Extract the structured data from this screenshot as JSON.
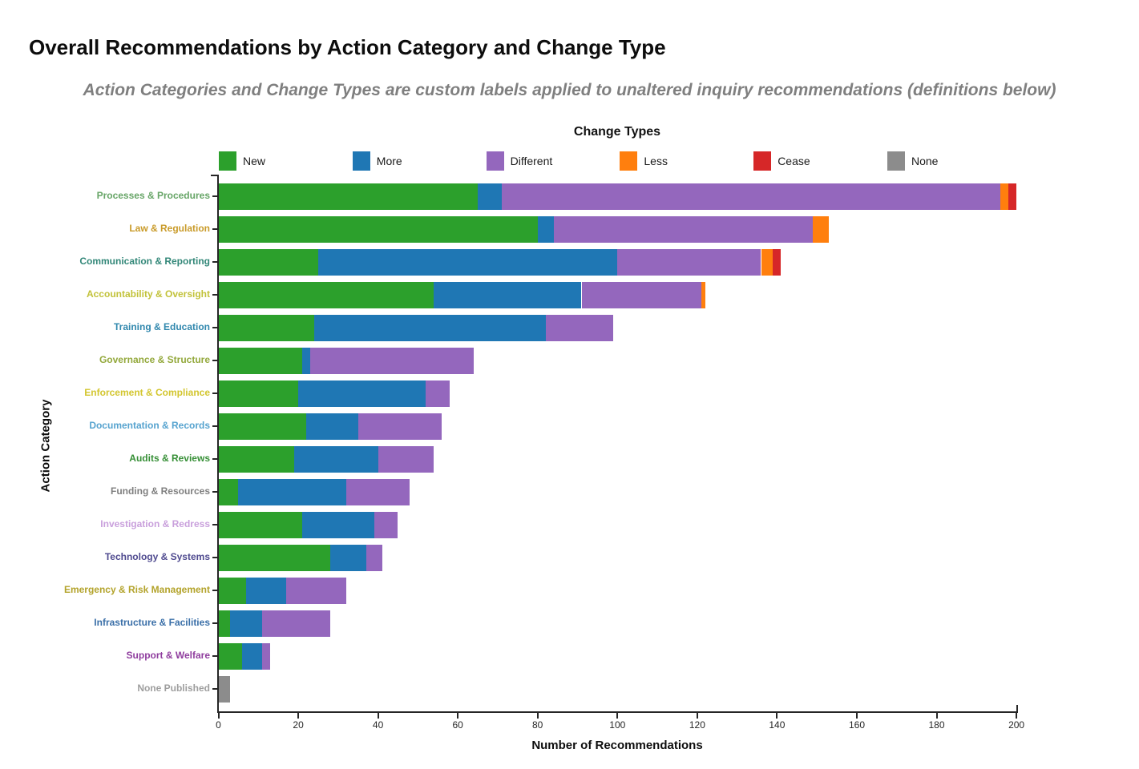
{
  "title": "Overall Recommendations by Action Category and Change Type",
  "subtitle": "Action Categories and Change Types are custom labels applied to unaltered inquiry recommendations (definitions below)",
  "legend": {
    "title": "Change Types",
    "items": [
      {
        "label": "New",
        "color": "#2ca02c"
      },
      {
        "label": "More",
        "color": "#1f77b4"
      },
      {
        "label": "Different",
        "color": "#9467bd"
      },
      {
        "label": "Less",
        "color": "#ff7f0e"
      },
      {
        "label": "Cease",
        "color": "#d62728"
      },
      {
        "label": "None",
        "color": "#8c8c8c"
      }
    ]
  },
  "chart_data": {
    "type": "bar",
    "orientation": "horizontal-stacked",
    "title": "Overall Recommendations by Action Category and Change Type",
    "xlabel": "Number of Recommendations",
    "ylabel": "Action Category",
    "xlim": [
      0,
      200
    ],
    "xticks": [
      0,
      20,
      40,
      60,
      80,
      100,
      120,
      140,
      160,
      180,
      200
    ],
    "grid": false,
    "legend_position": "top",
    "series_order": [
      "New",
      "More",
      "Different",
      "Less",
      "Cease",
      "None"
    ],
    "series_colors": {
      "New": "#2ca02c",
      "More": "#1f77b4",
      "Different": "#9467bd",
      "Less": "#ff7f0e",
      "Cease": "#d62728",
      "None": "#8c8c8c"
    },
    "categories": [
      {
        "label": "Processes & Procedures",
        "label_color": "#67a567",
        "values": {
          "New": 65,
          "More": 6,
          "Different": 125,
          "Less": 2,
          "Cease": 2,
          "None": 0
        }
      },
      {
        "label": "Law & Regulation",
        "label_color": "#c99b2a",
        "values": {
          "New": 80,
          "More": 4,
          "Different": 65,
          "Less": 4,
          "Cease": 0,
          "None": 0
        }
      },
      {
        "label": "Communication & Reporting",
        "label_color": "#328778",
        "values": {
          "New": 25,
          "More": 75,
          "Different": 36,
          "Less": 3,
          "Cease": 2,
          "None": 0
        }
      },
      {
        "label": "Accountability & Oversight",
        "label_color": "#c2c23a",
        "values": {
          "New": 54,
          "More": 37,
          "Different": 30,
          "Less": 1,
          "Cease": 0,
          "None": 0
        }
      },
      {
        "label": "Training & Education",
        "label_color": "#3188ae",
        "values": {
          "New": 24,
          "More": 58,
          "Different": 17,
          "Less": 0,
          "Cease": 0,
          "None": 0
        }
      },
      {
        "label": "Governance & Structure",
        "label_color": "#93a83b",
        "values": {
          "New": 21,
          "More": 2,
          "Different": 41,
          "Less": 0,
          "Cease": 0,
          "None": 0
        }
      },
      {
        "label": "Enforcement & Compliance",
        "label_color": "#d3c62f",
        "values": {
          "New": 20,
          "More": 32,
          "Different": 6,
          "Less": 0,
          "Cease": 0,
          "None": 0
        }
      },
      {
        "label": "Documentation & Records",
        "label_color": "#56a3cf",
        "values": {
          "New": 22,
          "More": 13,
          "Different": 21,
          "Less": 0,
          "Cease": 0,
          "None": 0
        }
      },
      {
        "label": "Audits & Reviews",
        "label_color": "#368f36",
        "values": {
          "New": 19,
          "More": 21,
          "Different": 14,
          "Less": 0,
          "Cease": 0,
          "None": 0
        }
      },
      {
        "label": "Funding & Resources",
        "label_color": "#7f7f7f",
        "values": {
          "New": 5,
          "More": 27,
          "Different": 16,
          "Less": 0,
          "Cease": 0,
          "None": 0
        }
      },
      {
        "label": "Investigation & Redress",
        "label_color": "#c9a0dc",
        "values": {
          "New": 21,
          "More": 18,
          "Different": 6,
          "Less": 0,
          "Cease": 0,
          "None": 0
        }
      },
      {
        "label": "Technology & Systems",
        "label_color": "#4f4a8f",
        "values": {
          "New": 28,
          "More": 9,
          "Different": 4,
          "Less": 0,
          "Cease": 0,
          "None": 0
        }
      },
      {
        "label": "Emergency & Risk Management",
        "label_color": "#b3a32b",
        "values": {
          "New": 7,
          "More": 10,
          "Different": 15,
          "Less": 0,
          "Cease": 0,
          "None": 0
        }
      },
      {
        "label": "Infrastructure & Facilities",
        "label_color": "#3a6fa8",
        "values": {
          "New": 3,
          "More": 8,
          "Different": 17,
          "Less": 0,
          "Cease": 0,
          "None": 0
        }
      },
      {
        "label": "Support & Welfare",
        "label_color": "#8f3d9e",
        "values": {
          "New": 6,
          "More": 5,
          "Different": 2,
          "Less": 0,
          "Cease": 0,
          "None": 0
        }
      },
      {
        "label": "None Published",
        "label_color": "#9e9e9e",
        "values": {
          "New": 0,
          "More": 0,
          "Different": 0,
          "Less": 0,
          "Cease": 0,
          "None": 3
        }
      }
    ]
  }
}
